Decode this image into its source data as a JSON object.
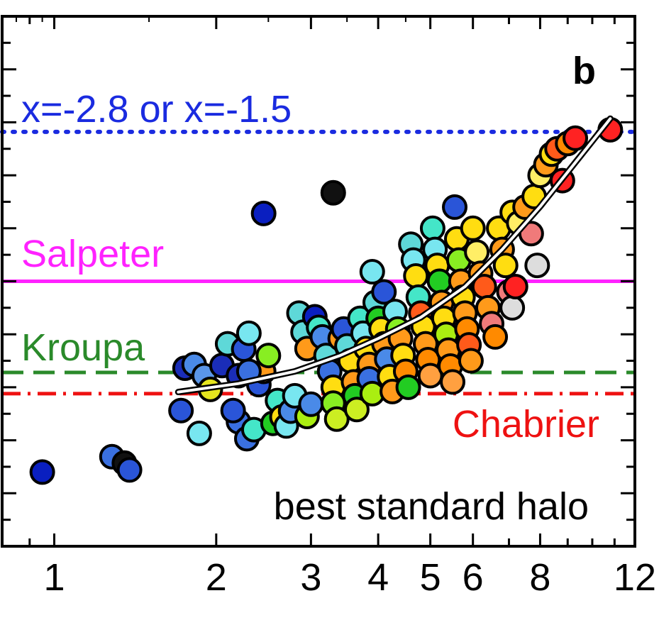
{
  "chart_data": {
    "type": "scatter",
    "panel_label": "b",
    "xscale": "log",
    "xlim": [
      0.8,
      12
    ],
    "xticks": [
      1,
      2,
      3,
      4,
      5,
      6,
      8,
      12
    ],
    "xtick_labels": [
      "1",
      "2",
      "3",
      "4",
      "5",
      "6",
      "8",
      "12"
    ],
    "ylim": [
      0,
      1
    ],
    "reference_lines": [
      {
        "label": "x=-2.8 or x=-1.5",
        "y": 0.782,
        "style": "dotted",
        "color": "#1a2be0"
      },
      {
        "label": "Salpeter",
        "y": 0.5,
        "style": "solid",
        "color": "#ff22ff"
      },
      {
        "label": "Kroupa",
        "y": 0.328,
        "style": "dashed",
        "color": "#2a8a2a"
      },
      {
        "label": "Chabrier",
        "y": 0.288,
        "style": "dashdot",
        "color": "#ee1111"
      }
    ],
    "annotation": "best standard halo",
    "fit_curve": {
      "x": [
        1.7,
        2.2,
        2.8,
        3.4,
        4.0,
        4.8,
        5.8,
        6.8,
        8.0,
        9.5,
        10.8
      ],
      "y": [
        0.291,
        0.307,
        0.33,
        0.36,
        0.392,
        0.432,
        0.49,
        0.56,
        0.641,
        0.736,
        0.807
      ]
    },
    "points": [
      {
        "x": 0.95,
        "y": 0.14,
        "c": "#0a1fc0"
      },
      {
        "x": 1.28,
        "y": 0.169,
        "c": "#3a70e0"
      },
      {
        "x": 1.35,
        "y": 0.157,
        "c": "#111111"
      },
      {
        "x": 1.38,
        "y": 0.144,
        "c": "#2a55d8"
      },
      {
        "x": 1.72,
        "y": 0.256,
        "c": "#2a55d8"
      },
      {
        "x": 1.86,
        "y": 0.213,
        "c": "#78e6f0"
      },
      {
        "x": 1.75,
        "y": 0.336,
        "c": "#1a2db8"
      },
      {
        "x": 1.82,
        "y": 0.343,
        "c": "#4a8ae8"
      },
      {
        "x": 1.9,
        "y": 0.322,
        "c": "#5a96e8"
      },
      {
        "x": 1.95,
        "y": 0.296,
        "c": "#e6e61e"
      },
      {
        "x": 2.05,
        "y": 0.341,
        "c": "#1a2db8"
      },
      {
        "x": 2.1,
        "y": 0.382,
        "c": "#5ed8d8"
      },
      {
        "x": 2.2,
        "y": 0.322,
        "c": "#1a2db8"
      },
      {
        "x": 2.25,
        "y": 0.372,
        "c": "#2a55d8"
      },
      {
        "x": 2.3,
        "y": 0.402,
        "c": "#78e6f0"
      },
      {
        "x": 2.2,
        "y": 0.235,
        "c": "#3a70e0"
      },
      {
        "x": 2.15,
        "y": 0.256,
        "c": "#2a55d8"
      },
      {
        "x": 2.28,
        "y": 0.203,
        "c": "#3a70e0"
      },
      {
        "x": 2.35,
        "y": 0.22,
        "c": "#44e6c8"
      },
      {
        "x": 2.4,
        "y": 0.305,
        "c": "#2a55d8"
      },
      {
        "x": 2.45,
        "y": 0.33,
        "c": "#ff9a1a"
      },
      {
        "x": 2.3,
        "y": 0.33,
        "c": "#3a70e0"
      },
      {
        "x": 2.5,
        "y": 0.36,
        "c": "#88ee22"
      },
      {
        "x": 2.55,
        "y": 0.232,
        "c": "#22cc22"
      },
      {
        "x": 2.6,
        "y": 0.275,
        "c": "#44e6c8"
      },
      {
        "x": 2.65,
        "y": 0.244,
        "c": "#ffdd11"
      },
      {
        "x": 2.7,
        "y": 0.227,
        "c": "#78e6f0"
      },
      {
        "x": 2.75,
        "y": 0.255,
        "c": "#4a8ae8"
      },
      {
        "x": 2.8,
        "y": 0.284,
        "c": "#78e6f0"
      },
      {
        "x": 2.85,
        "y": 0.44,
        "c": "#5ed8d8"
      },
      {
        "x": 2.9,
        "y": 0.404,
        "c": "#5ed8d8"
      },
      {
        "x": 2.95,
        "y": 0.373,
        "c": "#ff9a1a"
      },
      {
        "x": 2.95,
        "y": 0.245,
        "c": "#aaee11"
      },
      {
        "x": 3.0,
        "y": 0.268,
        "c": "#4a8ae8"
      },
      {
        "x": 3.05,
        "y": 0.433,
        "c": "#0a1fc0"
      },
      {
        "x": 3.1,
        "y": 0.413,
        "c": "#44e6c8"
      },
      {
        "x": 3.15,
        "y": 0.395,
        "c": "#4a8ae8"
      },
      {
        "x": 3.2,
        "y": 0.36,
        "c": "#5ed8d8"
      },
      {
        "x": 3.25,
        "y": 0.33,
        "c": "#3a70e0"
      },
      {
        "x": 3.3,
        "y": 0.3,
        "c": "#ffdd11"
      },
      {
        "x": 3.3,
        "y": 0.27,
        "c": "#88ee22"
      },
      {
        "x": 3.35,
        "y": 0.24,
        "c": "#ccee22"
      },
      {
        "x": 3.4,
        "y": 0.392,
        "c": "#ff9a1a"
      },
      {
        "x": 3.45,
        "y": 0.41,
        "c": "#2a55d8"
      },
      {
        "x": 3.5,
        "y": 0.378,
        "c": "#5ed8d8"
      },
      {
        "x": 3.55,
        "y": 0.35,
        "c": "#ffdd11"
      },
      {
        "x": 3.6,
        "y": 0.31,
        "c": "#ff9a1a"
      },
      {
        "x": 3.62,
        "y": 0.284,
        "c": "#22cc22"
      },
      {
        "x": 3.65,
        "y": 0.258,
        "c": "#ccee22"
      },
      {
        "x": 3.7,
        "y": 0.43,
        "c": "#44e6c8"
      },
      {
        "x": 3.75,
        "y": 0.402,
        "c": "#78e6f0"
      },
      {
        "x": 3.8,
        "y": 0.373,
        "c": "#ffdd11"
      },
      {
        "x": 3.85,
        "y": 0.343,
        "c": "#ff9a1a"
      },
      {
        "x": 3.85,
        "y": 0.316,
        "c": "#3a70e0"
      },
      {
        "x": 3.9,
        "y": 0.288,
        "c": "#aaee11"
      },
      {
        "x": 3.9,
        "y": 0.518,
        "c": "#78e6f0"
      },
      {
        "x": 3.95,
        "y": 0.46,
        "c": "#5ed8d8"
      },
      {
        "x": 4.0,
        "y": 0.43,
        "c": "#22cc22"
      },
      {
        "x": 4.05,
        "y": 0.41,
        "c": "#ffdd11"
      },
      {
        "x": 4.1,
        "y": 0.382,
        "c": "#ff9a1a"
      },
      {
        "x": 4.15,
        "y": 0.353,
        "c": "#4a8ae8"
      },
      {
        "x": 4.2,
        "y": 0.32,
        "c": "#ffdd11"
      },
      {
        "x": 4.25,
        "y": 0.292,
        "c": "#ff9a1a"
      },
      {
        "x": 4.1,
        "y": 0.48,
        "c": "#2a55d8"
      },
      {
        "x": 4.3,
        "y": 0.443,
        "c": "#78e6f0"
      },
      {
        "x": 4.35,
        "y": 0.41,
        "c": "#88ee22"
      },
      {
        "x": 4.4,
        "y": 0.392,
        "c": "#ff9a1a"
      },
      {
        "x": 4.45,
        "y": 0.36,
        "c": "#ffdd11"
      },
      {
        "x": 4.5,
        "y": 0.33,
        "c": "#ff8a00"
      },
      {
        "x": 4.55,
        "y": 0.3,
        "c": "#22cc22"
      },
      {
        "x": 4.6,
        "y": 0.57,
        "c": "#5ed8d8"
      },
      {
        "x": 4.65,
        "y": 0.54,
        "c": "#78e6f0"
      },
      {
        "x": 4.7,
        "y": 0.51,
        "c": "#ffdd11"
      },
      {
        "x": 4.75,
        "y": 0.47,
        "c": "#44e6c8"
      },
      {
        "x": 4.8,
        "y": 0.44,
        "c": "#ff5a1a"
      },
      {
        "x": 4.85,
        "y": 0.415,
        "c": "#ffdd11"
      },
      {
        "x": 4.9,
        "y": 0.382,
        "c": "#ff9a1a"
      },
      {
        "x": 4.95,
        "y": 0.352,
        "c": "#ff8a00"
      },
      {
        "x": 5.0,
        "y": 0.322,
        "c": "#ffa040"
      },
      {
        "x": 5.05,
        "y": 0.6,
        "c": "#44e6c8"
      },
      {
        "x": 5.1,
        "y": 0.56,
        "c": "#78e6f0"
      },
      {
        "x": 5.15,
        "y": 0.53,
        "c": "#ffdd11"
      },
      {
        "x": 5.2,
        "y": 0.5,
        "c": "#22cc22"
      },
      {
        "x": 5.25,
        "y": 0.46,
        "c": "#ff9a1a"
      },
      {
        "x": 5.3,
        "y": 0.43,
        "c": "#ffdd11"
      },
      {
        "x": 5.35,
        "y": 0.4,
        "c": "#aaee11"
      },
      {
        "x": 5.4,
        "y": 0.37,
        "c": "#ff9a1a"
      },
      {
        "x": 5.45,
        "y": 0.34,
        "c": "#ff8a00"
      },
      {
        "x": 5.5,
        "y": 0.31,
        "c": "#ffa040"
      },
      {
        "x": 5.55,
        "y": 0.64,
        "c": "#2a55d8"
      },
      {
        "x": 5.6,
        "y": 0.58,
        "c": "#ffdd11"
      },
      {
        "x": 5.65,
        "y": 0.54,
        "c": "#88ee22"
      },
      {
        "x": 5.7,
        "y": 0.5,
        "c": "#ff9a1a"
      },
      {
        "x": 5.75,
        "y": 0.47,
        "c": "#ffdd11"
      },
      {
        "x": 5.8,
        "y": 0.44,
        "c": "#ff9a1a"
      },
      {
        "x": 5.85,
        "y": 0.41,
        "c": "#ff8a00"
      },
      {
        "x": 5.9,
        "y": 0.38,
        "c": "#ff5a1a"
      },
      {
        "x": 5.95,
        "y": 0.35,
        "c": "#ff9a1a"
      },
      {
        "x": 6.0,
        "y": 0.6,
        "c": "#ffdd11"
      },
      {
        "x": 6.1,
        "y": 0.555,
        "c": "#ffee66"
      },
      {
        "x": 6.2,
        "y": 0.515,
        "c": "#ff9a1a"
      },
      {
        "x": 6.3,
        "y": 0.49,
        "c": "#ff5a1a"
      },
      {
        "x": 6.4,
        "y": 0.45,
        "c": "#ff9a1a"
      },
      {
        "x": 6.5,
        "y": 0.42,
        "c": "#f07a7a"
      },
      {
        "x": 6.6,
        "y": 0.395,
        "c": "#ff8a00"
      },
      {
        "x": 6.7,
        "y": 0.6,
        "c": "#ffdd11"
      },
      {
        "x": 6.8,
        "y": 0.56,
        "c": "#ff9a1a"
      },
      {
        "x": 6.9,
        "y": 0.53,
        "c": "#ffdd11"
      },
      {
        "x": 7.0,
        "y": 0.48,
        "c": "#f07a7a"
      },
      {
        "x": 7.1,
        "y": 0.45,
        "c": "#dddddd"
      },
      {
        "x": 7.2,
        "y": 0.49,
        "c": "#ff2222"
      },
      {
        "x": 7.1,
        "y": 0.63,
        "c": "#ffdd11"
      },
      {
        "x": 7.3,
        "y": 0.61,
        "c": "#ffee66"
      },
      {
        "x": 7.5,
        "y": 0.64,
        "c": "#ff9a1a"
      },
      {
        "x": 7.7,
        "y": 0.59,
        "c": "#f07a7a"
      },
      {
        "x": 7.9,
        "y": 0.53,
        "c": "#dddddd"
      },
      {
        "x": 7.8,
        "y": 0.66,
        "c": "#ffdd11"
      },
      {
        "x": 8.0,
        "y": 0.7,
        "c": "#ffee66"
      },
      {
        "x": 8.2,
        "y": 0.72,
        "c": "#ff9a1a"
      },
      {
        "x": 8.4,
        "y": 0.74,
        "c": "#ffdd11"
      },
      {
        "x": 8.6,
        "y": 0.75,
        "c": "#ff5a1a"
      },
      {
        "x": 8.8,
        "y": 0.69,
        "c": "#ff2222"
      },
      {
        "x": 9.0,
        "y": 0.76,
        "c": "#ff8a00"
      },
      {
        "x": 9.3,
        "y": 0.77,
        "c": "#ff2222"
      },
      {
        "x": 10.8,
        "y": 0.786,
        "c": "#ff2222"
      },
      {
        "x": 2.45,
        "y": 0.628,
        "c": "#0a1fc0"
      },
      {
        "x": 3.3,
        "y": 0.667,
        "c": "#111111"
      }
    ]
  }
}
